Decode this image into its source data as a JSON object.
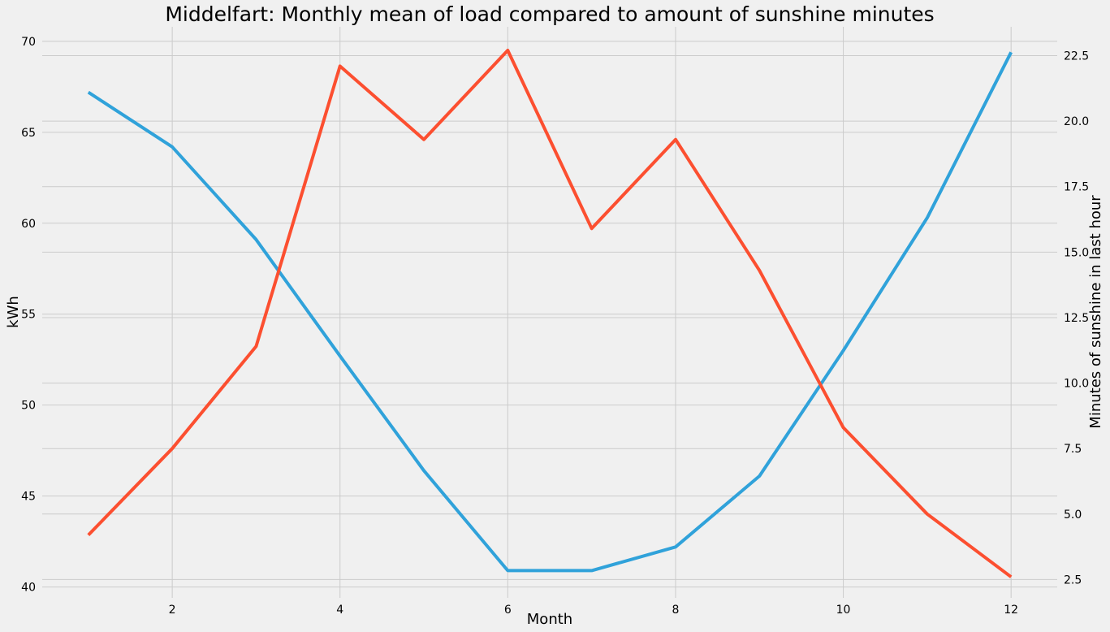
{
  "chart_data": {
    "type": "line",
    "title": "Middelfart: Monthly mean of load compared to amount of sunshine minutes",
    "xlabel": "Month",
    "ylabel": "kWh",
    "y2label": "Minutes of sunshine in last hour",
    "x": [
      1,
      2,
      3,
      4,
      5,
      6,
      7,
      8,
      9,
      10,
      11,
      12
    ],
    "xlim": [
      0.45,
      12.55
    ],
    "xticks": [
      2,
      4,
      6,
      8,
      10,
      12
    ],
    "ylim": [
      39.4,
      70.8
    ],
    "yticks": [
      40,
      45,
      50,
      55,
      60,
      65,
      70
    ],
    "y2lim": [
      1.8,
      23.6
    ],
    "y2ticks": [
      2.5,
      5.0,
      7.5,
      10.0,
      12.5,
      15.0,
      17.5,
      20.0,
      22.5
    ],
    "grid": true,
    "series": [
      {
        "axis": "left",
        "color": "#30a2da",
        "values": [
          67.2,
          64.2,
          59.1,
          52.7,
          46.4,
          40.9,
          40.9,
          42.2,
          46.1,
          53.0,
          60.3,
          69.4
        ]
      },
      {
        "axis": "right",
        "color": "#fc4f30",
        "values": [
          4.2,
          7.5,
          11.4,
          22.1,
          19.3,
          22.7,
          15.9,
          19.3,
          14.3,
          8.3,
          5.0,
          2.6
        ]
      }
    ]
  }
}
